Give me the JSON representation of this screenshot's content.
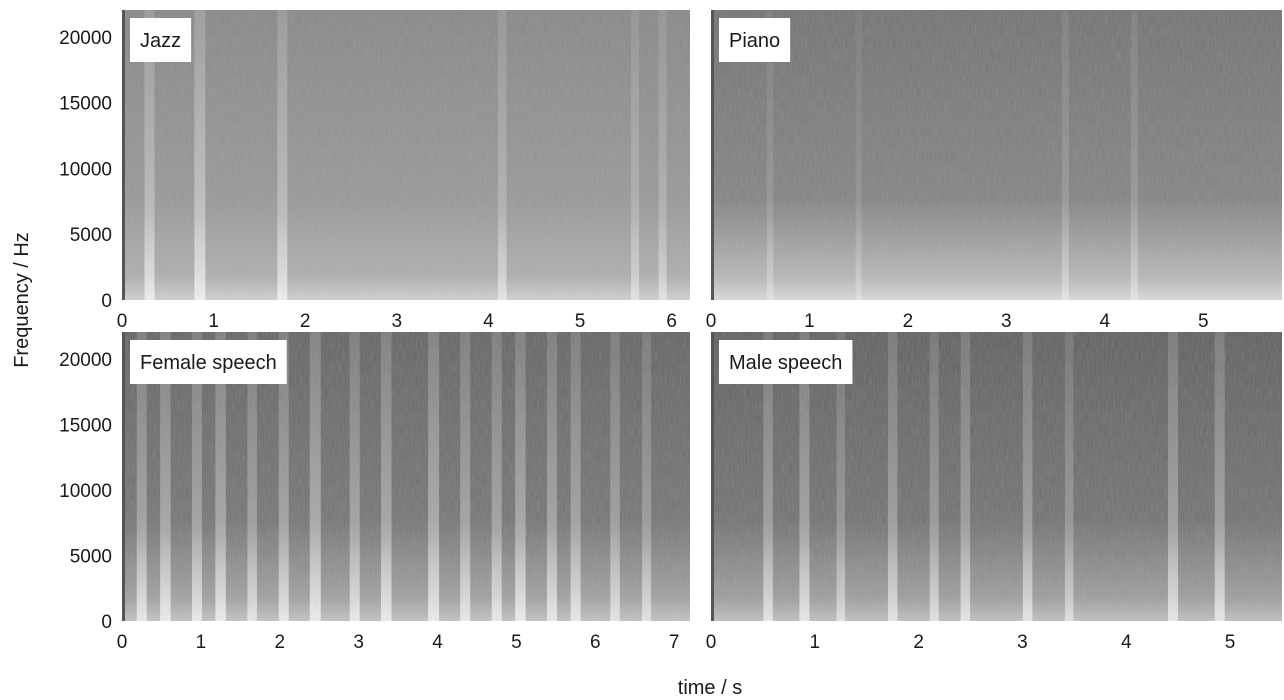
{
  "figure": {
    "ylabel": "Frequency / Hz",
    "xlabel": "time / s"
  },
  "chart_data": [
    {
      "type": "heatmap",
      "title": "Jazz",
      "xlim": [
        0,
        6.2
      ],
      "ylim": [
        0,
        22050
      ],
      "xticks": [
        0,
        1,
        2,
        3,
        4,
        5,
        6
      ],
      "yticks": [
        0,
        5000,
        10000,
        15000,
        20000
      ],
      "show_y_ticks": true,
      "base_level": 0.42,
      "low_freq_boost": 0.18,
      "activity": [
        {
          "t": 0.3,
          "level": 0.6
        },
        {
          "t": 0.85,
          "level": 0.7
        },
        {
          "t": 1.75,
          "level": 0.6
        },
        {
          "t": 4.15,
          "level": 0.45
        },
        {
          "t": 5.6,
          "level": 0.4
        },
        {
          "t": 5.9,
          "level": 0.4
        }
      ]
    },
    {
      "type": "heatmap",
      "title": "Piano",
      "xlim": [
        0,
        5.8
      ],
      "ylim": [
        0,
        22050
      ],
      "xticks": [
        0,
        1,
        2,
        3,
        4,
        5
      ],
      "yticks": [
        0,
        5000,
        10000,
        15000,
        20000
      ],
      "show_y_ticks": false,
      "base_level": 0.3,
      "low_freq_boost": 0.35,
      "activity": [
        {
          "t": 0.6,
          "level": 0.25
        },
        {
          "t": 1.5,
          "level": 0.2
        },
        {
          "t": 3.6,
          "level": 0.3
        },
        {
          "t": 4.3,
          "level": 0.3
        }
      ]
    },
    {
      "type": "heatmap",
      "title": "Female speech",
      "xlim": [
        0,
        7.2
      ],
      "ylim": [
        0,
        22050
      ],
      "xticks": [
        0,
        1,
        2,
        3,
        4,
        5,
        6,
        7
      ],
      "yticks": [
        0,
        5000,
        10000,
        15000,
        20000
      ],
      "show_y_ticks": true,
      "base_level": 0.22,
      "low_freq_boost": 0.3,
      "activity": [
        {
          "t": 0.25,
          "level": 0.6
        },
        {
          "t": 0.55,
          "level": 0.65
        },
        {
          "t": 0.95,
          "level": 0.6
        },
        {
          "t": 1.25,
          "level": 0.65
        },
        {
          "t": 1.65,
          "level": 0.55
        },
        {
          "t": 2.05,
          "level": 0.6
        },
        {
          "t": 2.45,
          "level": 0.7
        },
        {
          "t": 2.95,
          "level": 0.6
        },
        {
          "t": 3.35,
          "level": 0.65
        },
        {
          "t": 3.95,
          "level": 0.7
        },
        {
          "t": 4.35,
          "level": 0.6
        },
        {
          "t": 4.75,
          "level": 0.6
        },
        {
          "t": 5.05,
          "level": 0.65
        },
        {
          "t": 5.45,
          "level": 0.6
        },
        {
          "t": 5.75,
          "level": 0.6
        },
        {
          "t": 6.25,
          "level": 0.55
        },
        {
          "t": 6.65,
          "level": 0.5
        }
      ]
    },
    {
      "type": "heatmap",
      "title": "Male speech",
      "xlim": [
        0,
        5.5
      ],
      "ylim": [
        0,
        22050
      ],
      "xticks": [
        0,
        1,
        2,
        3,
        4,
        5
      ],
      "yticks": [
        0,
        5000,
        10000,
        15000,
        20000
      ],
      "show_y_ticks": false,
      "base_level": 0.2,
      "low_freq_boost": 0.3,
      "activity": [
        {
          "t": 0.55,
          "level": 0.55
        },
        {
          "t": 0.9,
          "level": 0.6
        },
        {
          "t": 1.25,
          "level": 0.45
        },
        {
          "t": 1.75,
          "level": 0.55
        },
        {
          "t": 2.15,
          "level": 0.5
        },
        {
          "t": 2.45,
          "level": 0.55
        },
        {
          "t": 3.05,
          "level": 0.55
        },
        {
          "t": 3.45,
          "level": 0.45
        },
        {
          "t": 4.45,
          "level": 0.6
        },
        {
          "t": 4.9,
          "level": 0.6
        }
      ]
    }
  ]
}
